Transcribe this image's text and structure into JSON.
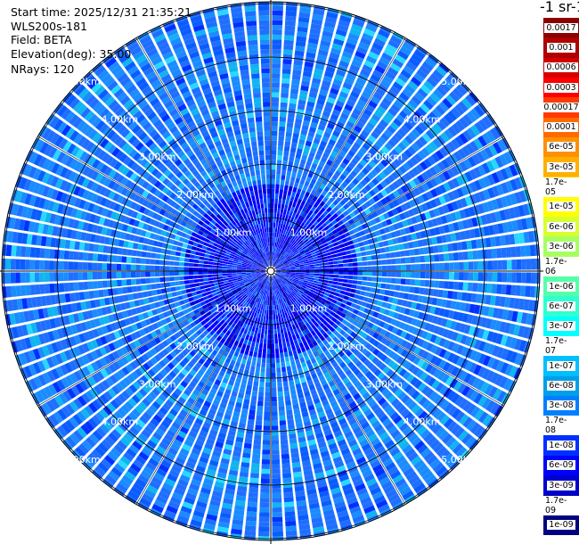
{
  "header": {
    "start_time": "Start time: 2025/12/31 21:35:21",
    "instrument": "WLS200s-181",
    "field": "Field: BETA",
    "elevation": "Elevation(deg): 35.00",
    "nrays": "NRays: 120"
  },
  "colorbar": {
    "title": "-1 sr-1",
    "labels": [
      "0.0017",
      "0.001",
      "0.0006",
      "0.0003",
      "0.00017",
      "0.0001",
      "6e-05",
      "3e-05",
      "1.7e-05",
      "1e-05",
      "6e-06",
      "3e-06",
      "1.7e-06",
      "1e-06",
      "6e-07",
      "3e-07",
      "1.7e-07",
      "1e-07",
      "6e-08",
      "3e-08",
      "1.7e-08",
      "1e-08",
      "6e-09",
      "3e-09",
      "1.7e-09",
      "1e-09"
    ],
    "colors": [
      "#8b0000",
      "#b00000",
      "#d40000",
      "#ff0000",
      "#ff3a00",
      "#ff6a00",
      "#ff9000",
      "#ffb000",
      "#ffd000",
      "#ffff00",
      "#d8ff30",
      "#a8ff60",
      "#80ff80",
      "#55ffaa",
      "#30ffd0",
      "#00ffff",
      "#00e0ff",
      "#00bfff",
      "#009fe8",
      "#0080ff",
      "#0060ff",
      "#0030ff",
      "#0000ff",
      "#0000d0",
      "#0000a0",
      "#000080"
    ]
  },
  "chart_data": {
    "type": "heatmap",
    "projection": "polar PPI",
    "field": "BETA",
    "elevation_deg": 35.0,
    "n_rays": 120,
    "range_rings_km": [
      1,
      2,
      3,
      4,
      5
    ],
    "ring_labels": [
      "1.00km",
      "2.00km",
      "3.00km",
      "4.00km",
      "5.00km"
    ],
    "max_range_km": 5.8,
    "value_range": [
      1e-09,
      0.0017
    ],
    "dominant_values": [
      3e-08,
      6e-08,
      1e-07
    ],
    "near_center_values": [
      1e-08,
      6e-09
    ]
  }
}
